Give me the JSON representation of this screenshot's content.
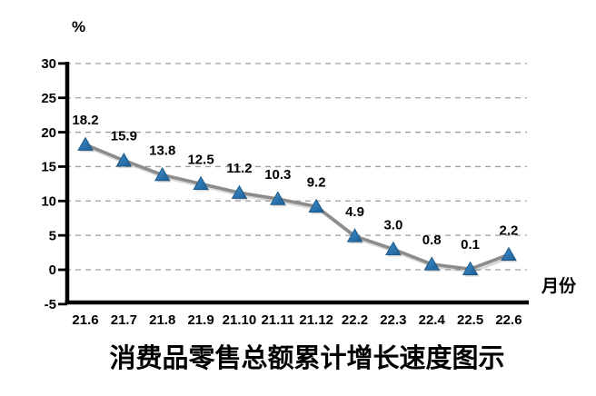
{
  "chart_data": {
    "type": "line",
    "title": "消费品零售总额累计增长速度图示",
    "y_unit_label": "%",
    "x_unit_label": "月份",
    "categories": [
      "21.6",
      "21.7",
      "21.8",
      "21.9",
      "21.10",
      "21.11",
      "21.12",
      "22.2",
      "22.3",
      "22.4",
      "22.5",
      "22.6"
    ],
    "values": [
      18.2,
      15.9,
      13.8,
      12.5,
      11.2,
      10.3,
      9.2,
      4.9,
      3.0,
      0.8,
      0.1,
      2.2
    ],
    "data_labels": [
      "18.2",
      "15.9",
      "13.8",
      "12.5",
      "11.2",
      "10.3",
      "9.2",
      "4.9",
      "3.0",
      "0.8",
      "0.1",
      "2.2"
    ],
    "ylim": [
      -5,
      30
    ],
    "y_ticks": [
      30,
      25,
      20,
      15,
      10,
      5,
      0,
      -5
    ],
    "y_gridlines": [
      30,
      25,
      20,
      15,
      10,
      5,
      0
    ],
    "grid": "horizontal-dashed",
    "legend": "none",
    "colors": {
      "marker_top": "#3E90CC",
      "marker_bottom": "#1E5E97",
      "marker_edge": "#1B5A8A",
      "line": "#8C8C8C",
      "grid": "#9E9E9E",
      "axis": "#000000",
      "text": "#000000",
      "background": "#FFFFFF"
    }
  }
}
